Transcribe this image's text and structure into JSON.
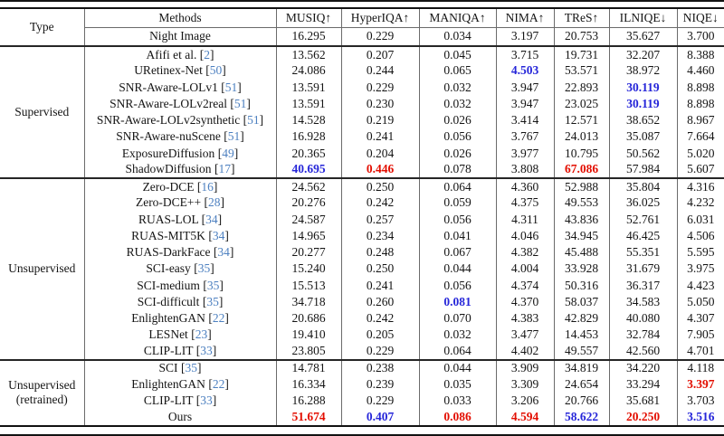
{
  "colors": {
    "best_value": "#e30e00",
    "second_best_value": "#2626d9",
    "citation": "#4d80c0"
  },
  "table": {
    "header": {
      "type": "Type",
      "methods": "Methods",
      "metrics": [
        "MUSIQ↑",
        "HyperIQA↑",
        "MANIQA↑",
        "NIMA↑",
        "TReS↑",
        "ILNIQE↓",
        "NIQE↓"
      ]
    },
    "baseline": {
      "method": "Night Image",
      "values": [
        "16.295",
        "0.229",
        "0.034",
        "3.197",
        "20.753",
        "35.627",
        "3.700"
      ],
      "marks": [
        "",
        "",
        "",
        "",
        "",
        "",
        ""
      ]
    },
    "sections": [
      {
        "type_label": "Supervised",
        "rows": [
          {
            "method": "Afifi et al.",
            "cite": "2",
            "values": [
              "13.562",
              "0.207",
              "0.045",
              "3.715",
              "19.731",
              "32.207",
              "8.388"
            ],
            "marks": [
              "",
              "",
              "",
              "",
              "",
              "",
              ""
            ]
          },
          {
            "method": "URetinex-Net",
            "cite": "50",
            "values": [
              "24.086",
              "0.244",
              "0.065",
              "4.503",
              "53.571",
              "38.972",
              "4.460"
            ],
            "marks": [
              "",
              "",
              "",
              "s",
              "",
              "",
              ""
            ]
          },
          {
            "method": "SNR-Aware-LOLv1",
            "cite": "51",
            "values": [
              "13.591",
              "0.229",
              "0.032",
              "3.947",
              "22.893",
              "30.119",
              "8.898"
            ],
            "marks": [
              "",
              "",
              "",
              "",
              "",
              "s",
              ""
            ]
          },
          {
            "method": "SNR-Aware-LOLv2real",
            "cite": "51",
            "values": [
              "13.591",
              "0.230",
              "0.032",
              "3.947",
              "23.025",
              "30.119",
              "8.898"
            ],
            "marks": [
              "",
              "",
              "",
              "",
              "",
              "s",
              ""
            ]
          },
          {
            "method": "SNR-Aware-LOLv2synthetic",
            "cite": "51",
            "values": [
              "14.528",
              "0.219",
              "0.026",
              "3.414",
              "12.571",
              "38.652",
              "8.967"
            ],
            "marks": [
              "",
              "",
              "",
              "",
              "",
              "",
              ""
            ]
          },
          {
            "method": "SNR-Aware-nuScene",
            "cite": "51",
            "values": [
              "16.928",
              "0.241",
              "0.056",
              "3.767",
              "24.013",
              "35.087",
              "7.664"
            ],
            "marks": [
              "",
              "",
              "",
              "",
              "",
              "",
              ""
            ]
          },
          {
            "method": "ExposureDiffusion",
            "cite": "49",
            "values": [
              "20.365",
              "0.204",
              "0.026",
              "3.977",
              "10.795",
              "50.562",
              "5.020"
            ],
            "marks": [
              "",
              "",
              "",
              "",
              "",
              "",
              ""
            ]
          },
          {
            "method": "ShadowDiffusion",
            "cite": "17",
            "values": [
              "40.695",
              "0.446",
              "0.078",
              "3.808",
              "67.086",
              "57.984",
              "5.607"
            ],
            "marks": [
              "s",
              "b",
              "",
              "",
              "b",
              "",
              ""
            ]
          }
        ]
      },
      {
        "type_label": "Unsupervised",
        "rows": [
          {
            "method": "Zero-DCE",
            "cite": "16",
            "values": [
              "24.562",
              "0.250",
              "0.064",
              "4.360",
              "52.988",
              "35.804",
              "4.316"
            ],
            "marks": [
              "",
              "",
              "",
              "",
              "",
              "",
              ""
            ]
          },
          {
            "method": "Zero-DCE++",
            "cite": "28",
            "values": [
              "20.276",
              "0.242",
              "0.059",
              "4.375",
              "49.553",
              "36.025",
              "4.232"
            ],
            "marks": [
              "",
              "",
              "",
              "",
              "",
              "",
              ""
            ]
          },
          {
            "method": "RUAS-LOL",
            "cite": "34",
            "values": [
              "24.587",
              "0.257",
              "0.056",
              "4.311",
              "43.836",
              "52.761",
              "6.031"
            ],
            "marks": [
              "",
              "",
              "",
              "",
              "",
              "",
              ""
            ]
          },
          {
            "method": "RUAS-MIT5K",
            "cite": "34",
            "values": [
              "14.965",
              "0.234",
              "0.041",
              "4.046",
              "34.945",
              "46.425",
              "4.506"
            ],
            "marks": [
              "",
              "",
              "",
              "",
              "",
              "",
              ""
            ]
          },
          {
            "method": "RUAS-DarkFace",
            "cite": "34",
            "values": [
              "20.277",
              "0.248",
              "0.067",
              "4.382",
              "45.488",
              "55.351",
              "5.595"
            ],
            "marks": [
              "",
              "",
              "",
              "",
              "",
              "",
              ""
            ]
          },
          {
            "method": "SCI-easy",
            "cite": "35",
            "values": [
              "15.240",
              "0.250",
              "0.044",
              "4.004",
              "33.928",
              "31.679",
              "3.975"
            ],
            "marks": [
              "",
              "",
              "",
              "",
              "",
              "",
              ""
            ]
          },
          {
            "method": "SCI-medium",
            "cite": "35",
            "values": [
              "15.513",
              "0.241",
              "0.056",
              "4.374",
              "50.316",
              "36.317",
              "4.423"
            ],
            "marks": [
              "",
              "",
              "",
              "",
              "",
              "",
              ""
            ]
          },
          {
            "method": "SCI-difficult",
            "cite": "35",
            "values": [
              "34.718",
              "0.260",
              "0.081",
              "4.370",
              "58.037",
              "34.583",
              "5.050"
            ],
            "marks": [
              "",
              "",
              "s",
              "",
              "",
              "",
              ""
            ]
          },
          {
            "method": "EnlightenGAN",
            "cite": "22",
            "values": [
              "20.686",
              "0.242",
              "0.070",
              "4.383",
              "42.829",
              "40.080",
              "4.307"
            ],
            "marks": [
              "",
              "",
              "",
              "",
              "",
              "",
              ""
            ]
          },
          {
            "method": "LESNet",
            "cite": "23",
            "values": [
              "19.410",
              "0.205",
              "0.032",
              "3.477",
              "14.453",
              "32.784",
              "7.905"
            ],
            "marks": [
              "",
              "",
              "",
              "",
              "",
              "",
              ""
            ]
          },
          {
            "method": "CLIP-LIT",
            "cite": "33",
            "values": [
              "23.805",
              "0.229",
              "0.064",
              "4.402",
              "49.557",
              "42.560",
              "4.701"
            ],
            "marks": [
              "",
              "",
              "",
              "",
              "",
              "",
              ""
            ]
          }
        ]
      },
      {
        "type_label": "Unsupervised\n(retrained)",
        "rows": [
          {
            "method": "SCI",
            "cite": "35",
            "values": [
              "14.781",
              "0.238",
              "0.044",
              "3.909",
              "34.819",
              "34.220",
              "4.118"
            ],
            "marks": [
              "",
              "",
              "",
              "",
              "",
              "",
              ""
            ]
          },
          {
            "method": "EnlightenGAN",
            "cite": "22",
            "values": [
              "16.334",
              "0.239",
              "0.035",
              "3.309",
              "24.654",
              "33.294",
              "3.397"
            ],
            "marks": [
              "",
              "",
              "",
              "",
              "",
              "",
              "b"
            ]
          },
          {
            "method": "CLIP-LIT",
            "cite": "33",
            "values": [
              "16.288",
              "0.229",
              "0.033",
              "3.206",
              "20.766",
              "35.681",
              "3.703"
            ],
            "marks": [
              "",
              "",
              "",
              "",
              "",
              "",
              ""
            ]
          },
          {
            "method": "Ours",
            "cite": "",
            "values": [
              "51.674",
              "0.407",
              "0.086",
              "4.594",
              "58.622",
              "20.250",
              "3.516"
            ],
            "marks": [
              "b",
              "s",
              "b",
              "b",
              "s",
              "b",
              "s"
            ]
          }
        ]
      }
    ]
  }
}
